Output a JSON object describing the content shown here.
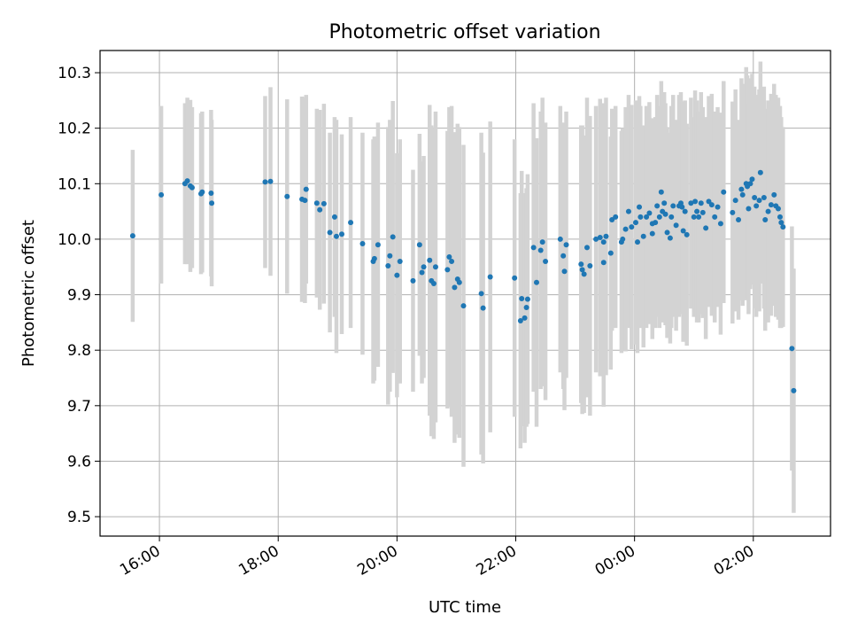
{
  "chart_data": {
    "type": "scatter",
    "title": "Photometric offset variation",
    "xlabel": "UTC time",
    "ylabel": "Photometric offset",
    "grid": true,
    "x_unit": "hours (UTC), values after 24 are past midnight of the next day",
    "xlim": [
      15.0,
      27.3
    ],
    "ylim": [
      9.465,
      10.34
    ],
    "x_ticks": [
      {
        "x": 16,
        "label": "16:00"
      },
      {
        "x": 18,
        "label": "18:00"
      },
      {
        "x": 20,
        "label": "20:00"
      },
      {
        "x": 22,
        "label": "22:00"
      },
      {
        "x": 24,
        "label": "00:00"
      },
      {
        "x": 26,
        "label": "02:00"
      }
    ],
    "y_ticks": [
      {
        "y": 9.5,
        "label": "9.5"
      },
      {
        "y": 9.6,
        "label": "9.6"
      },
      {
        "y": 9.7,
        "label": "9.7"
      },
      {
        "y": 9.8,
        "label": "9.8"
      },
      {
        "y": 9.9,
        "label": "9.9"
      },
      {
        "y": 10.0,
        "label": "10.0"
      },
      {
        "y": 10.1,
        "label": "10.1"
      },
      {
        "y": 10.2,
        "label": "10.2"
      },
      {
        "y": 10.3,
        "label": "10.3"
      }
    ],
    "marker_color": "#1f77b4",
    "errorbar_color": "#d3d3d3",
    "grid_color": "#b0b0b0",
    "points": [
      [
        15.55,
        10.006,
        0.155
      ],
      [
        16.03,
        10.08,
        0.16
      ],
      [
        16.43,
        10.1,
        0.145
      ],
      [
        16.47,
        10.105,
        0.15
      ],
      [
        16.52,
        10.096,
        0.155
      ],
      [
        16.55,
        10.093,
        0.145
      ],
      [
        16.7,
        10.082,
        0.145
      ],
      [
        16.72,
        10.085,
        0.145
      ],
      [
        16.87,
        10.083,
        0.15
      ],
      [
        16.88,
        10.065,
        0.15
      ],
      [
        17.78,
        10.103,
        0.155
      ],
      [
        17.87,
        10.104,
        0.17
      ],
      [
        18.15,
        10.077,
        0.175
      ],
      [
        18.4,
        10.072,
        0.185
      ],
      [
        18.45,
        10.07,
        0.185
      ],
      [
        18.47,
        10.09,
        0.17
      ],
      [
        18.65,
        10.065,
        0.17
      ],
      [
        18.7,
        10.053,
        0.18
      ],
      [
        18.77,
        10.064,
        0.18
      ],
      [
        18.87,
        10.012,
        0.18
      ],
      [
        18.95,
        10.04,
        0.18
      ],
      [
        18.98,
        10.005,
        0.21
      ],
      [
        19.07,
        10.009,
        0.18
      ],
      [
        19.22,
        10.03,
        0.19
      ],
      [
        19.42,
        9.992,
        0.2
      ],
      [
        19.6,
        9.96,
        0.22
      ],
      [
        19.62,
        9.965,
        0.22
      ],
      [
        19.68,
        9.99,
        0.22
      ],
      [
        19.85,
        9.952,
        0.25
      ],
      [
        19.88,
        9.97,
        0.245
      ],
      [
        19.93,
        10.004,
        0.245
      ],
      [
        20.0,
        9.935,
        0.22
      ],
      [
        20.05,
        9.96,
        0.22
      ],
      [
        20.27,
        9.925,
        0.2
      ],
      [
        20.38,
        9.99,
        0.2
      ],
      [
        20.42,
        9.94,
        0.2
      ],
      [
        20.45,
        9.95,
        0.2
      ],
      [
        20.55,
        9.962,
        0.28
      ],
      [
        20.58,
        9.925,
        0.28
      ],
      [
        20.62,
        9.92,
        0.28
      ],
      [
        20.65,
        9.95,
        0.28
      ],
      [
        20.85,
        9.945,
        0.25
      ],
      [
        20.88,
        9.968,
        0.27
      ],
      [
        20.92,
        9.96,
        0.28
      ],
      [
        20.97,
        9.913,
        0.28
      ],
      [
        21.02,
        9.928,
        0.28
      ],
      [
        21.05,
        9.922,
        0.28
      ],
      [
        21.12,
        9.88,
        0.29
      ],
      [
        21.42,
        9.902,
        0.29
      ],
      [
        21.45,
        9.876,
        0.28
      ],
      [
        21.57,
        9.932,
        0.28
      ],
      [
        21.98,
        9.93,
        0.25
      ],
      [
        22.08,
        9.853,
        0.23
      ],
      [
        22.1,
        9.893,
        0.23
      ],
      [
        22.15,
        9.858,
        0.225
      ],
      [
        22.18,
        9.877,
        0.215
      ],
      [
        22.2,
        9.892,
        0.225
      ],
      [
        22.3,
        9.985,
        0.26
      ],
      [
        22.35,
        9.922,
        0.26
      ],
      [
        22.42,
        9.98,
        0.25
      ],
      [
        22.45,
        9.995,
        0.26
      ],
      [
        22.5,
        9.96,
        0.25
      ],
      [
        22.75,
        10.0,
        0.24
      ],
      [
        22.8,
        9.97,
        0.24
      ],
      [
        22.82,
        9.942,
        0.25
      ],
      [
        22.85,
        9.99,
        0.24
      ],
      [
        23.1,
        9.955,
        0.25
      ],
      [
        23.12,
        9.945,
        0.26
      ],
      [
        23.15,
        9.937,
        0.25
      ],
      [
        23.2,
        9.985,
        0.27
      ],
      [
        23.25,
        9.952,
        0.27
      ],
      [
        23.35,
        10.0,
        0.24
      ],
      [
        23.42,
        10.003,
        0.25
      ],
      [
        23.48,
        9.995,
        0.25
      ],
      [
        23.52,
        10.005,
        0.25
      ],
      [
        23.48,
        9.958,
        0.26
      ],
      [
        23.62,
        10.035,
        0.2
      ],
      [
        23.68,
        10.04,
        0.2
      ],
      [
        23.6,
        9.975,
        0.21
      ],
      [
        23.78,
        9.995,
        0.2
      ],
      [
        23.8,
        10.0,
        0.2
      ],
      [
        23.85,
        10.018,
        0.22
      ],
      [
        23.9,
        10.05,
        0.21
      ],
      [
        23.95,
        10.022,
        0.22
      ],
      [
        24.02,
        10.03,
        0.22
      ],
      [
        24.05,
        9.995,
        0.2
      ],
      [
        24.08,
        10.058,
        0.2
      ],
      [
        24.1,
        10.04,
        0.2
      ],
      [
        24.15,
        10.005,
        0.2
      ],
      [
        24.2,
        10.04,
        0.2
      ],
      [
        24.25,
        10.047,
        0.2
      ],
      [
        24.3,
        10.01,
        0.19
      ],
      [
        24.3,
        10.028,
        0.19
      ],
      [
        24.35,
        10.03,
        0.19
      ],
      [
        24.38,
        10.06,
        0.2
      ],
      [
        24.42,
        10.04,
        0.2
      ],
      [
        24.45,
        10.085,
        0.2
      ],
      [
        24.47,
        10.05,
        0.2
      ],
      [
        24.5,
        10.065,
        0.2
      ],
      [
        24.52,
        10.045,
        0.2
      ],
      [
        24.55,
        10.012,
        0.19
      ],
      [
        24.6,
        10.002,
        0.19
      ],
      [
        24.62,
        10.04,
        0.2
      ],
      [
        24.65,
        10.06,
        0.2
      ],
      [
        24.7,
        10.025,
        0.19
      ],
      [
        24.75,
        10.06,
        0.2
      ],
      [
        24.78,
        10.065,
        0.2
      ],
      [
        24.8,
        10.058,
        0.19
      ],
      [
        24.82,
        10.015,
        0.2
      ],
      [
        24.85,
        10.05,
        0.2
      ],
      [
        24.88,
        10.008,
        0.2
      ],
      [
        24.95,
        10.065,
        0.19
      ],
      [
        25.0,
        10.04,
        0.18
      ],
      [
        25.02,
        10.068,
        0.2
      ],
      [
        25.05,
        10.05,
        0.2
      ],
      [
        25.08,
        10.04,
        0.19
      ],
      [
        25.12,
        10.065,
        0.2
      ],
      [
        25.15,
        10.048,
        0.19
      ],
      [
        25.2,
        10.02,
        0.2
      ],
      [
        25.25,
        10.068,
        0.19
      ],
      [
        25.3,
        10.062,
        0.2
      ],
      [
        25.35,
        10.04,
        0.19
      ],
      [
        25.4,
        10.058,
        0.18
      ],
      [
        25.45,
        10.028,
        0.2
      ],
      [
        25.5,
        10.085,
        0.2
      ],
      [
        25.65,
        10.048,
        0.2
      ],
      [
        25.7,
        10.07,
        0.2
      ],
      [
        25.75,
        10.035,
        0.18
      ],
      [
        25.8,
        10.09,
        0.2
      ],
      [
        25.82,
        10.08,
        0.2
      ],
      [
        25.88,
        10.1,
        0.21
      ],
      [
        25.9,
        10.095,
        0.2
      ],
      [
        25.92,
        10.055,
        0.19
      ],
      [
        25.95,
        10.1,
        0.19
      ],
      [
        25.98,
        10.108,
        0.19
      ],
      [
        26.02,
        10.075,
        0.2
      ],
      [
        26.05,
        10.06,
        0.2
      ],
      [
        26.1,
        10.07,
        0.2
      ],
      [
        26.12,
        10.12,
        0.2
      ],
      [
        26.18,
        10.075,
        0.2
      ],
      [
        26.2,
        10.035,
        0.2
      ],
      [
        26.25,
        10.05,
        0.2
      ],
      [
        26.3,
        10.062,
        0.2
      ],
      [
        26.35,
        10.08,
        0.2
      ],
      [
        26.38,
        10.06,
        0.2
      ],
      [
        26.42,
        10.055,
        0.2
      ],
      [
        26.45,
        10.04,
        0.2
      ],
      [
        26.47,
        10.03,
        0.19
      ],
      [
        26.5,
        10.022,
        0.18
      ],
      [
        26.65,
        9.803,
        0.22
      ],
      [
        26.68,
        9.727,
        0.22
      ]
    ]
  }
}
